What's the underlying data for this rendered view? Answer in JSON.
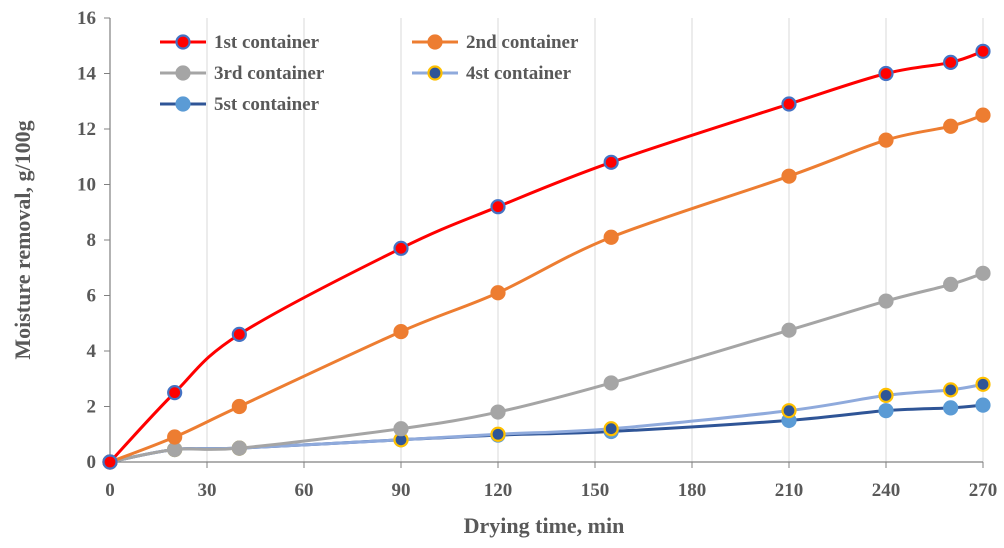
{
  "chart_data": {
    "type": "line",
    "title": "",
    "xlabel": "Drying time, min",
    "ylabel": "Moisture removal, g/100g",
    "xlim": [
      0,
      270
    ],
    "ylim": [
      0,
      16
    ],
    "xticks": [
      0,
      30,
      60,
      90,
      120,
      150,
      180,
      210,
      240,
      270
    ],
    "yticks": [
      0,
      2,
      4,
      6,
      8,
      10,
      12,
      14,
      16
    ],
    "grid": "vertical",
    "legend_position": "top-left",
    "series": [
      {
        "name": "1st container",
        "line_color": "#FF0000",
        "marker_fill": "#FF0000",
        "marker_edge": "#4472C4",
        "x": [
          0,
          20,
          40,
          90,
          120,
          155,
          210,
          240,
          260,
          270
        ],
        "y": [
          0,
          2.5,
          4.6,
          7.7,
          9.2,
          10.8,
          12.9,
          14.0,
          14.4,
          14.8
        ]
      },
      {
        "name": "2nd container",
        "line_color": "#ED7D31",
        "marker_fill": "#ED7D31",
        "marker_edge": "#ED7D31",
        "x": [
          0,
          20,
          40,
          90,
          120,
          155,
          210,
          240,
          260,
          270
        ],
        "y": [
          0,
          0.9,
          2.0,
          4.7,
          6.1,
          8.1,
          10.3,
          11.6,
          12.1,
          12.5
        ]
      },
      {
        "name": "3rd container",
        "line_color": "#A5A5A5",
        "marker_fill": "#A5A5A5",
        "marker_edge": "#A5A5A5",
        "x": [
          0,
          20,
          40,
          90,
          120,
          155,
          210,
          240,
          260,
          270
        ],
        "y": [
          0,
          0.45,
          0.5,
          1.2,
          1.8,
          2.85,
          4.75,
          5.8,
          6.4,
          6.8
        ]
      },
      {
        "name": "4st container",
        "line_color": "#8FAADC",
        "marker_fill": "#2F5597",
        "marker_edge": "#FFC000",
        "x": [
          0,
          20,
          40,
          90,
          120,
          155,
          210,
          240,
          260,
          270
        ],
        "y": [
          0,
          0.45,
          0.5,
          0.8,
          1.0,
          1.2,
          1.85,
          2.4,
          2.6,
          2.8
        ]
      },
      {
        "name": "5st container",
        "line_color": "#2F5597",
        "marker_fill": "#5B9BD5",
        "marker_edge": "#5B9BD5",
        "x": [
          0,
          20,
          40,
          90,
          120,
          155,
          210,
          240,
          260,
          270
        ],
        "y": [
          0,
          0.45,
          0.5,
          0.8,
          0.97,
          1.1,
          1.5,
          1.85,
          1.95,
          2.05
        ]
      }
    ]
  },
  "colors": {
    "axis": "#808080",
    "grid": "#D9D9D9",
    "text": "#595959"
  }
}
